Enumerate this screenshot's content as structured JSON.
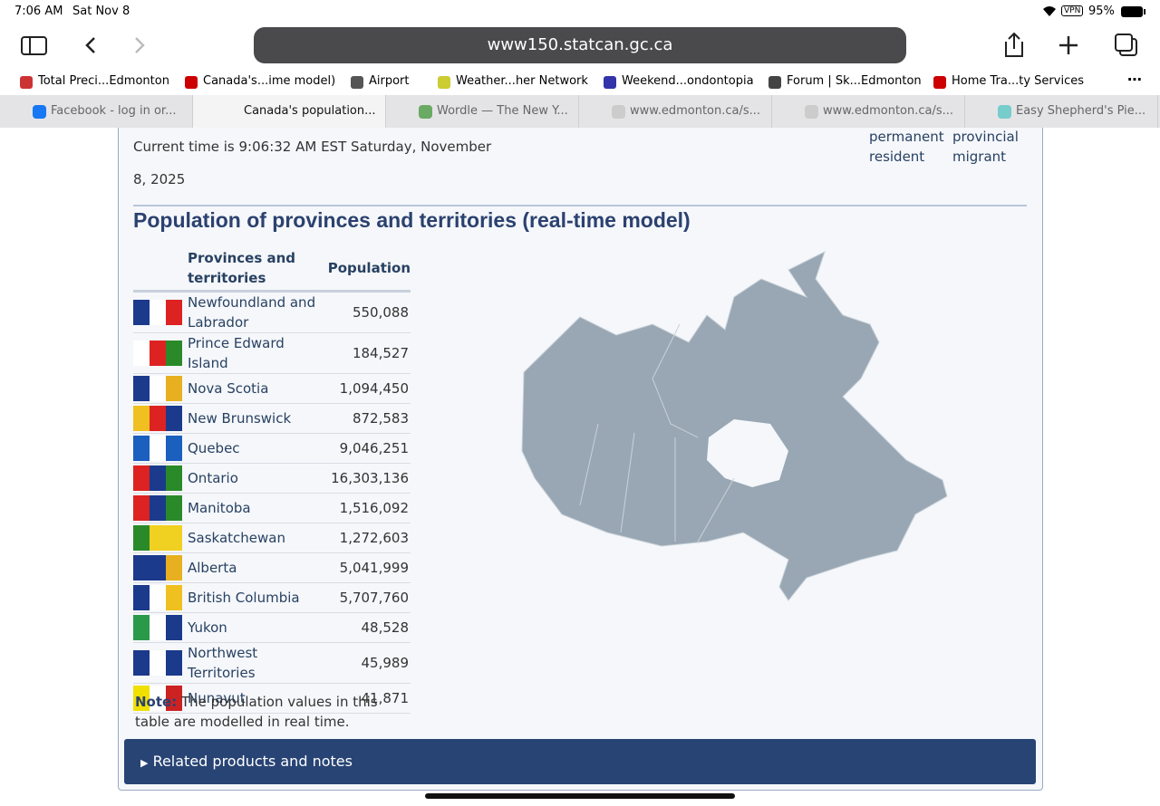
{
  "status_bar": {
    "time": "7:06 AM",
    "date": "Sat Nov 8",
    "vpn": "VPN",
    "battery": "95%"
  },
  "address_bar": {
    "url": "www150.statcan.gc.ca"
  },
  "bookmarks": [
    "Total Preci...Edmonton",
    "Canada's...ime model)",
    "Airport",
    "Weather...her Network",
    "Weekend...ondontopia",
    "Forum | Sk...Edmonton",
    "Home Tra...ty Services"
  ],
  "tabs": [
    "Facebook - log in or...",
    "Canada's population...",
    "Wordle — The New Y...",
    "www.edmonton.ca/s...",
    "www.edmonton.ca/s...",
    "Easy Shepherd's Pie..."
  ],
  "content": {
    "current_time": "Current time is 9:06:32 AM EST Saturday, November 8, 2025",
    "side_labels": [
      "permanent resident",
      "provincial migrant"
    ],
    "title": "Population of provinces and territories (real-time model)",
    "table": {
      "headers": [
        "Provinces and territories",
        "Population"
      ],
      "rows": [
        [
          "Newfoundland and Labrador",
          "550,088"
        ],
        [
          "Prince Edward Island",
          "184,527"
        ],
        [
          "Nova Scotia",
          "1,094,450"
        ],
        [
          "New Brunswick",
          "872,583"
        ],
        [
          "Quebec",
          "9,046,251"
        ],
        [
          "Ontario",
          "16,303,136"
        ],
        [
          "Manitoba",
          "1,516,092"
        ],
        [
          "Saskatchewan",
          "1,272,603"
        ],
        [
          "Alberta",
          "5,041,999"
        ],
        [
          "British Columbia",
          "5,707,760"
        ],
        [
          "Yukon",
          "48,528"
        ],
        [
          "Northwest Territories",
          "45,989"
        ],
        [
          "Nunavut",
          "41,871"
        ]
      ]
    },
    "note_label": "Note:",
    "note_text": "The population values in this table are modelled in real time.",
    "details": "Related products and notes"
  }
}
